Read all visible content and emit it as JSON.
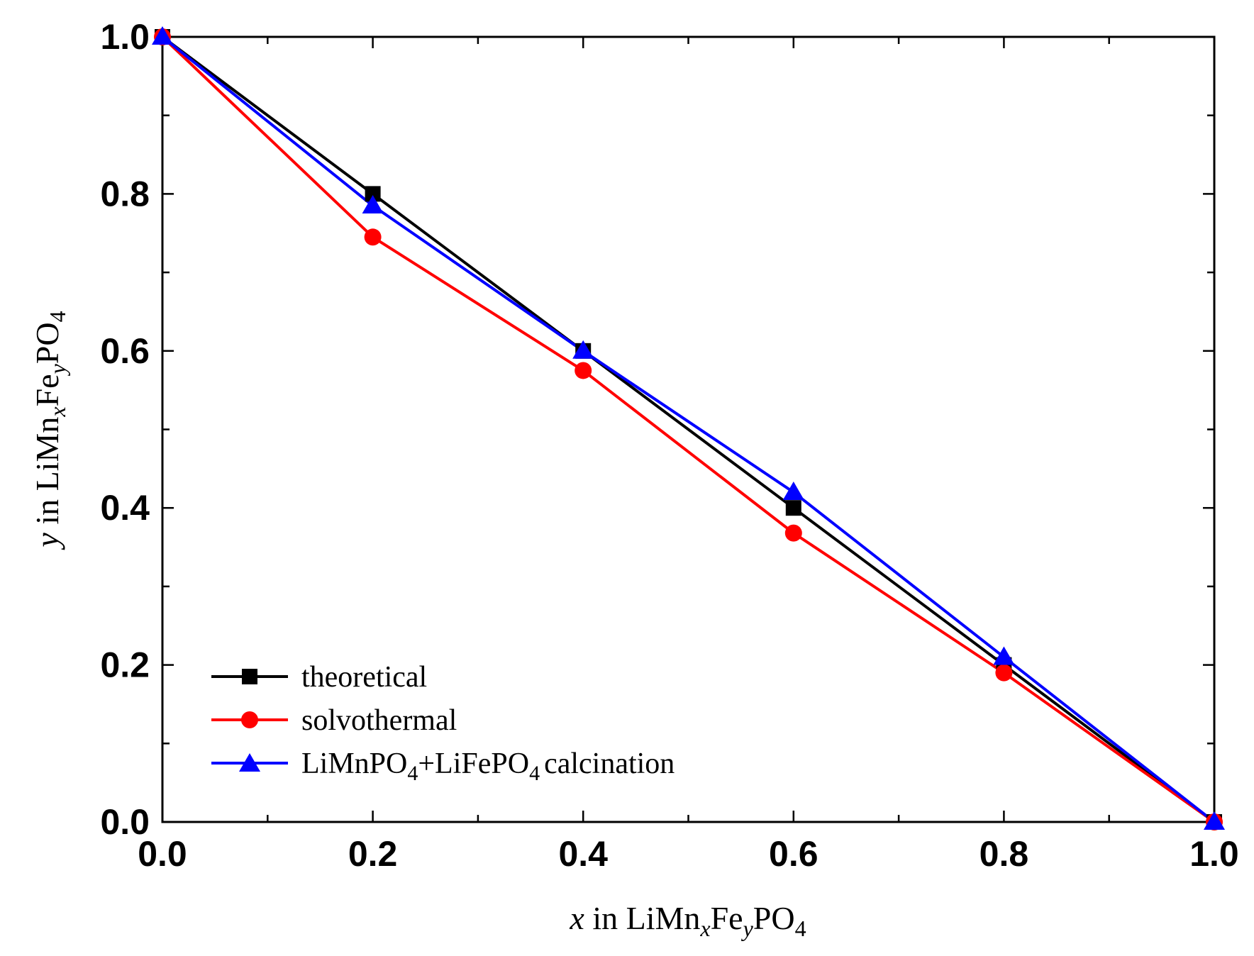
{
  "chart_data": {
    "type": "line",
    "title": "",
    "x": [
      0.0,
      0.2,
      0.4,
      0.6,
      0.8,
      1.0
    ],
    "xlim": [
      0.0,
      1.0
    ],
    "ylim": [
      0.0,
      1.0
    ],
    "xticks_major": [
      "0.0",
      "0.2",
      "0.4",
      "0.6",
      "0.8",
      "1.0"
    ],
    "yticks_major": [
      "0.0",
      "0.2",
      "0.4",
      "0.6",
      "0.8",
      "1.0"
    ],
    "xlabel": {
      "var": "x",
      "text_in": " in LiMn",
      "sub1": "x",
      "text_fe": "Fe",
      "sub2": "y",
      "text_po": "PO",
      "sub3": "4"
    },
    "ylabel": {
      "var": "y",
      "text_in": " in LiMn",
      "sub1": "x",
      "text_fe": "Fe",
      "sub2": "y",
      "text_po": "PO",
      "sub3": "4"
    },
    "grid": false,
    "legend_position": "bottom-left",
    "series": [
      {
        "name": "theoretical",
        "color": "#000000",
        "marker": "square",
        "values": [
          1.0,
          0.8,
          0.6,
          0.4,
          0.2,
          0.0
        ]
      },
      {
        "name": "solvothermal",
        "color": "#ff0000",
        "marker": "circle",
        "values": [
          1.0,
          0.745,
          0.575,
          0.368,
          0.19,
          0.0
        ]
      },
      {
        "name": "LiMnPO4+LiFePO4 calcination",
        "color": "#0000ff",
        "marker": "triangle",
        "values": [
          1.0,
          0.785,
          0.6,
          0.42,
          0.21,
          0.0
        ]
      }
    ],
    "legend_labels": {
      "theoretical": "theoretical",
      "solvothermal": "solvothermal",
      "calc_a": "LiMnPO",
      "calc_sub_a": "4",
      "calc_b": "+LiFePO",
      "calc_sub_b": "4",
      "calc_c": "calcination"
    }
  }
}
